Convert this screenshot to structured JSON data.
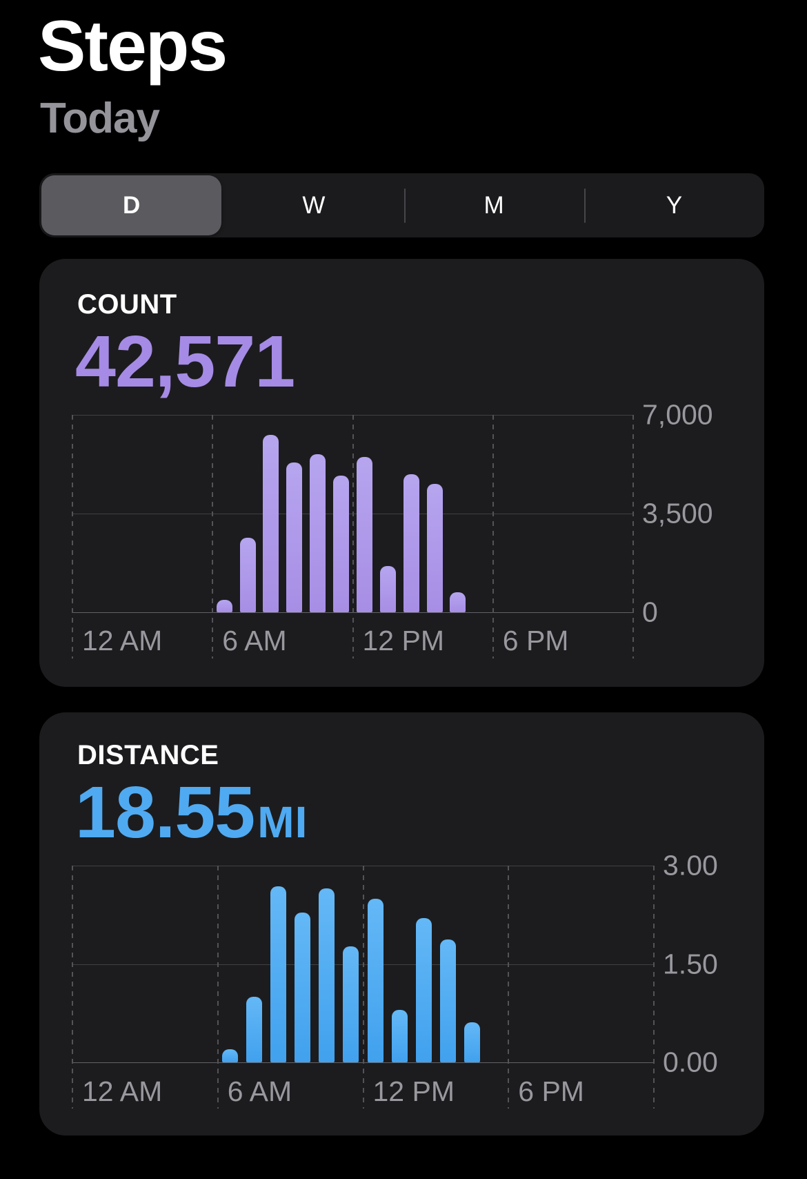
{
  "header": {
    "title": "Steps",
    "subtitle": "Today"
  },
  "segmented_control": {
    "options": [
      {
        "label": "D",
        "selected": true
      },
      {
        "label": "W",
        "selected": false
      },
      {
        "label": "M",
        "selected": false
      },
      {
        "label": "Y",
        "selected": false
      }
    ]
  },
  "cards": [
    {
      "id": "count",
      "heading": "COUNT",
      "value": "42,571",
      "unit": "",
      "accent_color": "#a58be5",
      "bar_gradient_top": "#b6a5ef",
      "bar_gradient_bottom": "#a78ee5",
      "chart_data": {
        "type": "bar",
        "title": "Steps per hour today",
        "xlabel": "",
        "ylabel": "",
        "start_hour": 6,
        "categories": [
          "6 AM",
          "7 AM",
          "8 AM",
          "9 AM",
          "10 AM",
          "11 AM",
          "12 PM",
          "1 PM",
          "2 PM",
          "3 PM",
          "4 PM"
        ],
        "values": [
          450,
          2650,
          6300,
          5300,
          5600,
          4850,
          5500,
          1650,
          4900,
          4550,
          700
        ],
        "ylim": [
          0,
          7000
        ],
        "xlim_hours": [
          0,
          24
        ],
        "y_axis_ticks": [
          {
            "value": 7000,
            "label": "7,000"
          },
          {
            "value": 3500,
            "label": "3,500"
          },
          {
            "value": 0,
            "label": "0"
          }
        ],
        "x_axis_ticks": [
          {
            "hour": 0,
            "label": "12 AM"
          },
          {
            "hour": 6,
            "label": "6 AM"
          },
          {
            "hour": 12,
            "label": "12 PM"
          },
          {
            "hour": 18,
            "label": "6 PM"
          },
          {
            "hour": 24,
            "label": ""
          }
        ],
        "grid": true,
        "legend": "none"
      }
    },
    {
      "id": "distance",
      "heading": "DISTANCE",
      "value": "18.55",
      "unit": "MI",
      "accent_color": "#4faaf2",
      "bar_gradient_top": "#64b8f6",
      "bar_gradient_bottom": "#41a1ee",
      "chart_data": {
        "type": "bar",
        "title": "Distance per hour today (miles)",
        "xlabel": "",
        "ylabel": "",
        "start_hour": 6,
        "categories": [
          "6 AM",
          "7 AM",
          "8 AM",
          "9 AM",
          "10 AM",
          "11 AM",
          "12 PM",
          "1 PM",
          "2 PM",
          "3 PM",
          "4 PM"
        ],
        "values": [
          0.2,
          1.0,
          2.68,
          2.28,
          2.65,
          1.77,
          2.49,
          0.8,
          2.2,
          1.87,
          0.61
        ],
        "ylim": [
          0,
          3
        ],
        "xlim_hours": [
          0,
          24
        ],
        "y_axis_ticks": [
          {
            "value": 3.0,
            "label": "3.00"
          },
          {
            "value": 1.5,
            "label": "1.50"
          },
          {
            "value": 0,
            "label": "0.00"
          }
        ],
        "x_axis_ticks": [
          {
            "hour": 0,
            "label": "12 AM"
          },
          {
            "hour": 6,
            "label": "6 AM"
          },
          {
            "hour": 12,
            "label": "12 PM"
          },
          {
            "hour": 18,
            "label": "6 PM"
          },
          {
            "hour": 24,
            "label": ""
          }
        ],
        "grid": true,
        "legend": "none"
      }
    }
  ]
}
